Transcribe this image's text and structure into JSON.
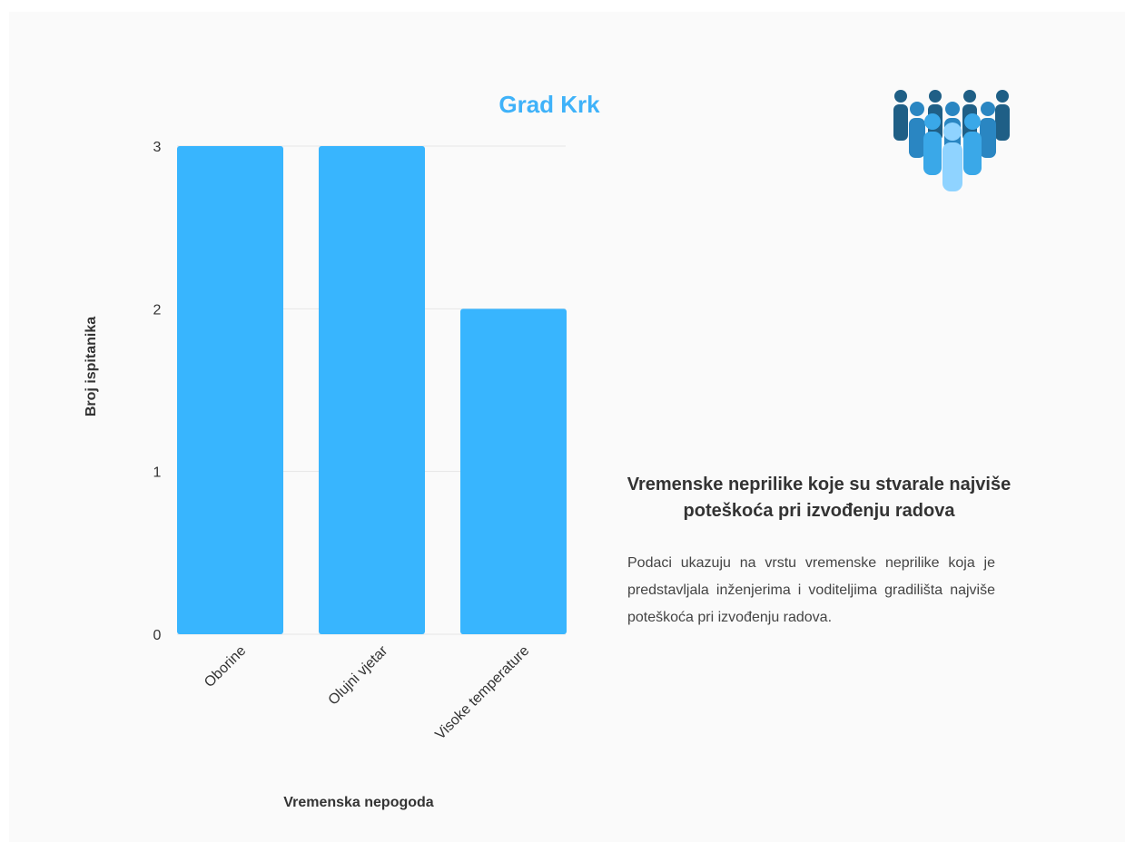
{
  "chart_data": {
    "type": "bar",
    "title": "Grad Krk",
    "categories": [
      "Oborine",
      "Olujni vjetar",
      "Visoke temperature"
    ],
    "values": [
      3,
      3,
      2
    ],
    "xlabel": "Vremenska nepogoda",
    "ylabel": "Broj ispitanika",
    "ylim": [
      0,
      3
    ],
    "yticks": [
      "0",
      "1",
      "2",
      "3"
    ],
    "grid": true,
    "bar_color": "#38b5fe"
  },
  "info": {
    "heading": "Vremenske neprilike koje su stvarale najviše poteškoća pri izvođenju radova",
    "description": "Podaci ukazuju na vrstu vremenske neprilike koja je predstavljala inženjerima i voditeljima gradilišta najviše poteškoća pri izvođenju radova."
  },
  "icon": "people-group-icon",
  "colors": {
    "title": "#3fb2f9",
    "bars": "#38b5fe",
    "background": "#fafafa"
  }
}
